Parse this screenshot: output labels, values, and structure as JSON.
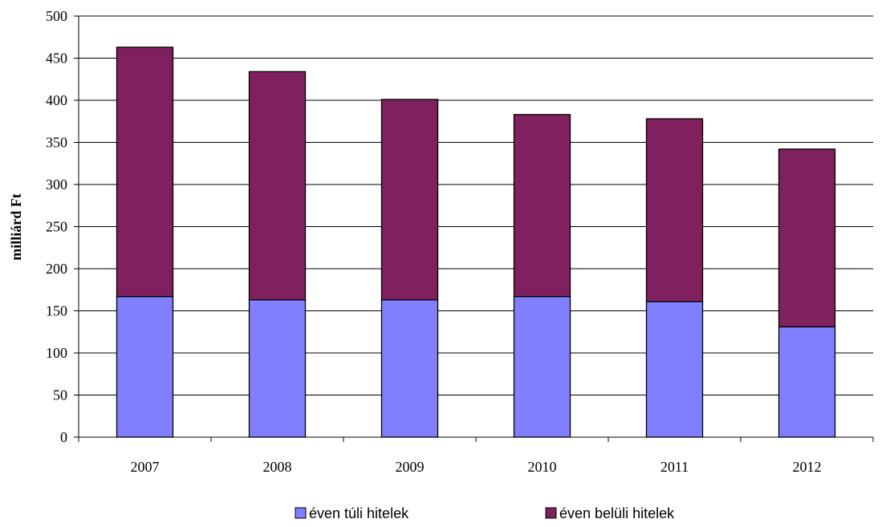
{
  "chart_data": {
    "type": "bar",
    "stacked": true,
    "categories": [
      "2007",
      "2008",
      "2009",
      "2010",
      "2011",
      "2012"
    ],
    "series": [
      {
        "name": "éven túli hitelek",
        "values": [
          167,
          163,
          163,
          167,
          161,
          131
        ],
        "color": "#8080ff"
      },
      {
        "name": "éven belüli hitelek",
        "values": [
          296,
          271,
          238,
          216,
          217,
          211
        ],
        "color": "#80205e"
      }
    ],
    "title": "",
    "xlabel": "",
    "ylabel": "milliárd Ft",
    "ylim": [
      0,
      500
    ],
    "yticks": [
      0,
      50,
      100,
      150,
      200,
      250,
      300,
      350,
      400,
      450,
      500
    ],
    "grid": true,
    "legend_position": "bottom"
  }
}
